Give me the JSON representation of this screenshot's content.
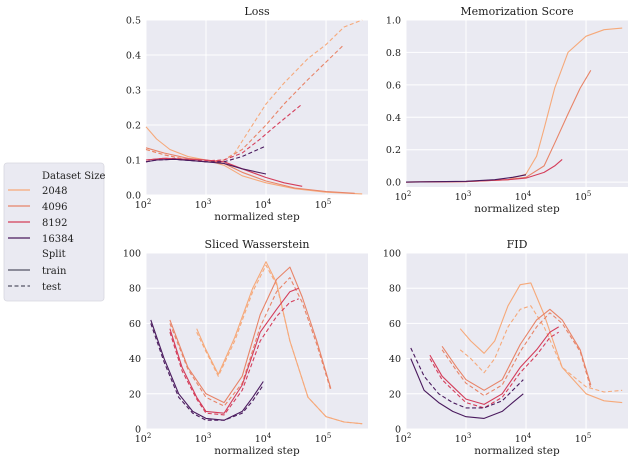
{
  "colors": {
    "panel_bg": "#eaeaf2",
    "grid": "#ffffff",
    "s2048": "#f6a97a",
    "s4096": "#e88468",
    "s8192": "#d43d5a",
    "s16384": "#4a1a5e",
    "split": "#555566"
  },
  "legend": {
    "size_title": "Dataset Size",
    "sizes": [
      {
        "label": "2048",
        "color": "#f6a97a"
      },
      {
        "label": "4096",
        "color": "#e88468"
      },
      {
        "label": "8192",
        "color": "#d43d5a"
      },
      {
        "label": "16384",
        "color": "#4a1a5e"
      }
    ],
    "split_title": "Split",
    "splits": [
      {
        "label": "train",
        "dash": "solid"
      },
      {
        "label": "test",
        "dash": "dashed"
      }
    ]
  },
  "chart_data": [
    {
      "type": "line",
      "title": "Loss",
      "xlabel": "normalized step",
      "xscale": "log",
      "xlim": [
        100,
        500000
      ],
      "ylim": [
        0,
        0.5
      ],
      "yticks": [
        "0.0",
        "0.1",
        "0.2",
        "0.3",
        "0.4",
        "0.5"
      ],
      "ytick_values": [
        0,
        0.1,
        0.2,
        0.3,
        0.4,
        0.5
      ],
      "xticks": [
        {
          "base": "10",
          "exp": "2",
          "v": 100
        },
        {
          "base": "10",
          "exp": "3",
          "v": 1000
        },
        {
          "base": "10",
          "exp": "4",
          "v": 10000
        },
        {
          "base": "10",
          "exp": "5",
          "v": 100000
        }
      ],
      "series": [
        {
          "size": "2048",
          "split": "train",
          "x": [
            100,
            150,
            250,
            500,
            1000,
            2000,
            4000,
            10000,
            30000,
            100000,
            400000
          ],
          "y": [
            0.195,
            0.16,
            0.13,
            0.11,
            0.1,
            0.085,
            0.055,
            0.035,
            0.018,
            0.008,
            0.003
          ]
        },
        {
          "size": "2048",
          "split": "test",
          "x": [
            100,
            200,
            500,
            1000,
            2000,
            3000,
            5000,
            10000,
            20000,
            50000,
            100000,
            200000,
            400000
          ],
          "y": [
            0.13,
            0.115,
            0.1,
            0.095,
            0.1,
            0.12,
            0.18,
            0.26,
            0.32,
            0.39,
            0.43,
            0.48,
            0.5
          ]
        },
        {
          "size": "4096",
          "split": "train",
          "x": [
            100,
            200,
            500,
            1000,
            2000,
            4000,
            10000,
            30000,
            100000,
            300000
          ],
          "y": [
            0.135,
            0.12,
            0.105,
            0.1,
            0.09,
            0.065,
            0.04,
            0.02,
            0.01,
            0.005
          ]
        },
        {
          "size": "4096",
          "split": "test",
          "x": [
            100,
            200,
            500,
            1000,
            2000,
            4000,
            10000,
            20000,
            50000,
            100000,
            200000
          ],
          "y": [
            0.13,
            0.115,
            0.1,
            0.095,
            0.1,
            0.13,
            0.2,
            0.26,
            0.33,
            0.38,
            0.43
          ]
        },
        {
          "size": "8192",
          "split": "train",
          "x": [
            100,
            200,
            500,
            1000,
            2000,
            4000,
            10000,
            20000,
            40000
          ],
          "y": [
            0.1,
            0.105,
            0.102,
            0.1,
            0.095,
            0.075,
            0.05,
            0.035,
            0.025
          ]
        },
        {
          "size": "8192",
          "split": "test",
          "x": [
            100,
            200,
            500,
            1000,
            2000,
            4000,
            8000,
            15000,
            40000
          ],
          "y": [
            0.1,
            0.105,
            0.102,
            0.098,
            0.1,
            0.12,
            0.16,
            0.2,
            0.26
          ]
        },
        {
          "size": "16384",
          "split": "train",
          "x": [
            100,
            150,
            300,
            600,
            1000,
            2000,
            4000,
            10000
          ],
          "y": [
            0.095,
            0.1,
            0.102,
            0.098,
            0.095,
            0.09,
            0.075,
            0.06
          ]
        },
        {
          "size": "16384",
          "split": "test",
          "x": [
            100,
            150,
            300,
            600,
            1000,
            2000,
            4000,
            10000
          ],
          "y": [
            0.095,
            0.1,
            0.102,
            0.098,
            0.095,
            0.095,
            0.11,
            0.14
          ]
        }
      ]
    },
    {
      "type": "line",
      "title": "Memorization Score",
      "xlabel": "normalized step",
      "xscale": "log",
      "xlim": [
        100,
        500000
      ],
      "ylim": [
        -0.03,
        1.0
      ],
      "yticks": [
        "0.0",
        "0.2",
        "0.4",
        "0.6",
        "0.8",
        "1.0"
      ],
      "ytick_values": [
        0,
        0.2,
        0.4,
        0.6,
        0.8,
        1.0
      ],
      "xticks": [
        {
          "base": "10",
          "exp": "2",
          "v": 100
        },
        {
          "base": "10",
          "exp": "3",
          "v": 1000
        },
        {
          "base": "10",
          "exp": "4",
          "v": 10000
        },
        {
          "base": "10",
          "exp": "5",
          "v": 100000
        }
      ],
      "series": [
        {
          "size": "2048",
          "split": "train",
          "x": [
            100,
            1000,
            5000,
            10000,
            15000,
            20000,
            30000,
            50000,
            100000,
            200000,
            400000
          ],
          "y": [
            0.0,
            0.003,
            0.015,
            0.05,
            0.16,
            0.33,
            0.58,
            0.8,
            0.9,
            0.94,
            0.95
          ]
        },
        {
          "size": "4096",
          "split": "train",
          "x": [
            100,
            1000,
            5000,
            10000,
            20000,
            30000,
            50000,
            80000,
            120000
          ],
          "y": [
            0.0,
            0.003,
            0.015,
            0.03,
            0.1,
            0.24,
            0.42,
            0.58,
            0.69
          ]
        },
        {
          "size": "8192",
          "split": "train",
          "x": [
            100,
            1000,
            5000,
            10000,
            20000,
            30000,
            40000
          ],
          "y": [
            0.0,
            0.003,
            0.015,
            0.025,
            0.06,
            0.1,
            0.14
          ]
        },
        {
          "size": "16384",
          "split": "train",
          "x": [
            100,
            1000,
            3000,
            6000,
            10000
          ],
          "y": [
            0.0,
            0.005,
            0.015,
            0.03,
            0.045
          ]
        }
      ]
    },
    {
      "type": "line",
      "title": "Sliced Wasserstein",
      "xlabel": "normalized step",
      "xscale": "log",
      "xlim": [
        100,
        500000
      ],
      "ylim": [
        0,
        100
      ],
      "yticks": [
        "0",
        "20",
        "40",
        "60",
        "80",
        "100"
      ],
      "ytick_values": [
        0,
        20,
        40,
        60,
        80,
        100
      ],
      "xticks": [
        {
          "base": "10",
          "exp": "2",
          "v": 100
        },
        {
          "base": "10",
          "exp": "3",
          "v": 1000
        },
        {
          "base": "10",
          "exp": "4",
          "v": 10000
        },
        {
          "base": "10",
          "exp": "5",
          "v": 100000
        }
      ],
      "series": [
        {
          "size": "2048",
          "split": "train",
          "x": [
            700,
            1000,
            1600,
            3000,
            6000,
            10000,
            15000,
            25000,
            50000,
            100000,
            200000,
            400000
          ],
          "y": [
            57,
            45,
            31,
            52,
            80,
            95,
            83,
            50,
            18,
            7,
            4,
            3
          ]
        },
        {
          "size": "2048",
          "split": "test",
          "x": [
            700,
            1000,
            1600,
            3000,
            6000,
            10000,
            15000,
            25000,
            50000,
            100000,
            200000,
            400000
          ],
          "y": [
            55,
            44,
            30,
            50,
            78,
            93,
            82,
            50,
            18,
            7,
            4,
            3
          ]
        },
        {
          "size": "4096",
          "split": "train",
          "x": [
            250,
            500,
            1000,
            2000,
            4000,
            8000,
            15000,
            25000,
            40000,
            70000,
            120000
          ],
          "y": [
            62,
            35,
            20,
            15,
            30,
            65,
            85,
            92,
            75,
            50,
            23
          ]
        },
        {
          "size": "4096",
          "split": "test",
          "x": [
            250,
            500,
            1000,
            2000,
            4000,
            8000,
            15000,
            25000,
            40000,
            70000,
            120000
          ],
          "y": [
            60,
            34,
            18,
            13,
            26,
            58,
            78,
            86,
            72,
            48,
            22
          ]
        },
        {
          "size": "8192",
          "split": "train",
          "x": [
            250,
            400,
            700,
            1000,
            2000,
            4000,
            8000,
            15000,
            25000,
            35000
          ],
          "y": [
            57,
            35,
            18,
            10,
            9,
            25,
            55,
            68,
            78,
            80
          ]
        },
        {
          "size": "8192",
          "split": "test",
          "x": [
            250,
            400,
            700,
            1000,
            2000,
            4000,
            8000,
            15000,
            25000,
            35000
          ],
          "y": [
            55,
            33,
            17,
            9,
            8,
            22,
            50,
            64,
            72,
            74
          ]
        },
        {
          "size": "16384",
          "split": "train",
          "x": [
            120,
            200,
            350,
            600,
            1000,
            2000,
            4000,
            6000,
            9000
          ],
          "y": [
            62,
            40,
            20,
            10,
            6,
            5,
            10,
            18,
            27
          ]
        },
        {
          "size": "16384",
          "split": "test",
          "x": [
            120,
            200,
            350,
            600,
            1000,
            2000,
            4000,
            6000,
            9000
          ],
          "y": [
            60,
            38,
            18,
            9,
            5,
            5,
            9,
            16,
            25
          ]
        }
      ]
    },
    {
      "type": "line",
      "title": "FID",
      "xlabel": "normalized step",
      "xscale": "log",
      "xlim": [
        100,
        500000
      ],
      "ylim": [
        0,
        100
      ],
      "yticks": [
        "0",
        "20",
        "40",
        "60",
        "80",
        "100"
      ],
      "ytick_values": [
        0,
        20,
        40,
        60,
        80,
        100
      ],
      "xticks": [
        {
          "base": "10",
          "exp": "2",
          "v": 100
        },
        {
          "base": "10",
          "exp": "3",
          "v": 1000
        },
        {
          "base": "10",
          "exp": "4",
          "v": 10000
        },
        {
          "base": "10",
          "exp": "5",
          "v": 100000
        }
      ],
      "series": [
        {
          "size": "2048",
          "split": "train",
          "x": [
            800,
            1200,
            2000,
            3000,
            5000,
            8000,
            12000,
            20000,
            40000,
            100000,
            200000,
            400000
          ],
          "y": [
            57,
            50,
            43,
            50,
            70,
            82,
            83,
            65,
            35,
            20,
            16,
            15
          ]
        },
        {
          "size": "2048",
          "split": "test",
          "x": [
            800,
            1200,
            2000,
            3000,
            5000,
            8000,
            12000,
            20000,
            40000,
            100000,
            200000,
            400000
          ],
          "y": [
            45,
            40,
            32,
            40,
            58,
            68,
            70,
            58,
            35,
            24,
            21,
            22
          ]
        },
        {
          "size": "4096",
          "split": "train",
          "x": [
            400,
            700,
            1000,
            2000,
            4000,
            8000,
            15000,
            25000,
            40000,
            80000,
            120000
          ],
          "y": [
            47,
            35,
            28,
            22,
            28,
            48,
            62,
            68,
            62,
            45,
            25
          ]
        },
        {
          "size": "4096",
          "split": "test",
          "x": [
            400,
            700,
            1000,
            2000,
            4000,
            8000,
            15000,
            25000,
            40000,
            80000,
            120000
          ],
          "y": [
            45,
            33,
            26,
            19,
            25,
            44,
            58,
            66,
            60,
            44,
            23
          ]
        },
        {
          "size": "8192",
          "split": "train",
          "x": [
            250,
            400,
            700,
            1000,
            2000,
            4000,
            8000,
            15000,
            25000,
            35000
          ],
          "y": [
            42,
            30,
            22,
            17,
            14,
            20,
            35,
            45,
            55,
            58
          ]
        },
        {
          "size": "8192",
          "split": "test",
          "x": [
            250,
            400,
            700,
            1000,
            2000,
            4000,
            8000,
            15000,
            25000,
            35000
          ],
          "y": [
            40,
            28,
            20,
            15,
            12,
            18,
            32,
            42,
            52,
            55
          ]
        },
        {
          "size": "16384",
          "split": "train",
          "x": [
            120,
            200,
            350,
            600,
            1000,
            2000,
            4000,
            6000,
            9000
          ],
          "y": [
            40,
            22,
            15,
            10,
            7,
            6,
            10,
            15,
            20
          ]
        },
        {
          "size": "16384",
          "split": "test",
          "x": [
            120,
            200,
            350,
            600,
            1000,
            2000,
            4000,
            6000,
            9000
          ],
          "y": [
            46,
            30,
            20,
            15,
            12,
            12,
            16,
            22,
            28
          ]
        }
      ]
    }
  ]
}
